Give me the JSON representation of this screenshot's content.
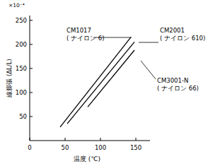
{
  "chart_data": {
    "type": "line",
    "y_label": "線膨張 (ΔL/L)",
    "y_unit": "×10⁻⁴",
    "x_label": "温度 (℃)",
    "series": [
      {
        "name": "CM1017",
        "note": "( ナイロン 6)",
        "color": "#000000",
        "x": [
          43,
          143
        ],
        "values": [
          28,
          215
        ]
      },
      {
        "name": "CM2001",
        "note": "( ナイロン 610)",
        "color": "#000000",
        "x": [
          53,
          148
        ],
        "values": [
          35,
          205
        ]
      },
      {
        "name": "CM3001-N",
        "note": "( ナイロン 66)",
        "color": "#000000",
        "x": [
          82,
          148
        ],
        "values": [
          70,
          188
        ]
      }
    ],
    "xlim": [
      0,
      170
    ],
    "xticks": [
      0,
      50,
      100,
      150
    ],
    "ylim": [
      0,
      260
    ],
    "yticks": [
      50,
      100,
      150,
      200,
      250
    ],
    "grid": false
  }
}
